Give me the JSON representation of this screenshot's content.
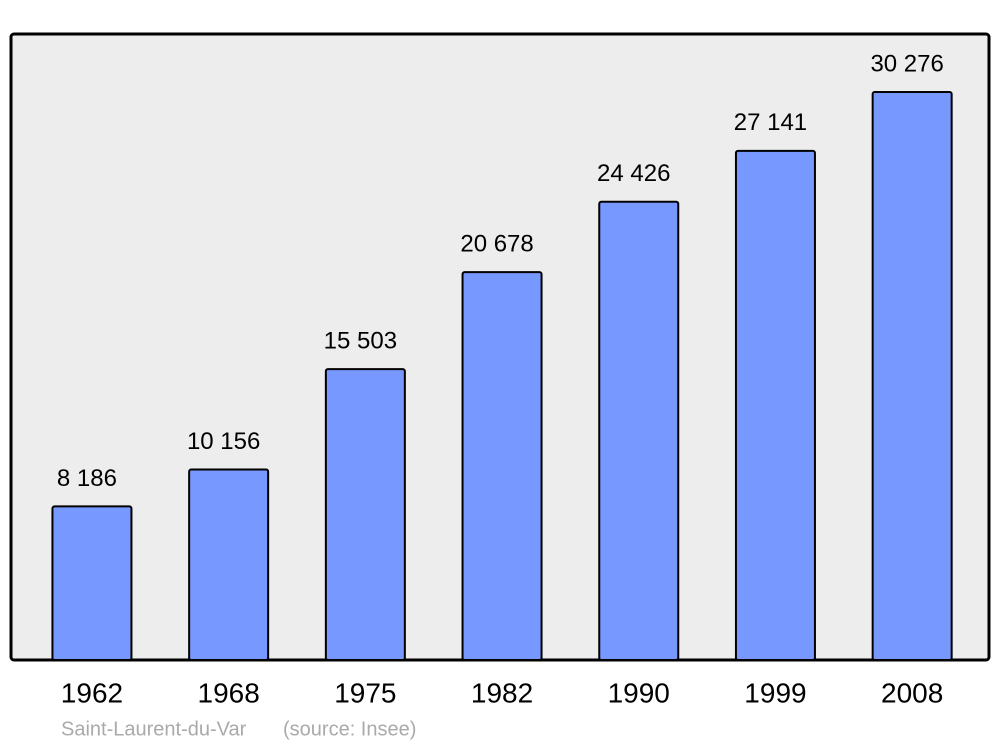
{
  "chart_data": {
    "type": "bar",
    "categories": [
      "1962",
      "1968",
      "1975",
      "1982",
      "1990",
      "1999",
      "2008"
    ],
    "values": [
      8186,
      10156,
      15503,
      20678,
      24426,
      27141,
      30276
    ],
    "value_labels": [
      "8 186",
      "10 156",
      "15 503",
      "20 678",
      "24 426",
      "27 141",
      "30 276"
    ],
    "color": "#7799ff",
    "ylim": [
      0,
      33370
    ],
    "caption": "Saint-Laurent-du-Var",
    "source": "(source: Insee)"
  }
}
